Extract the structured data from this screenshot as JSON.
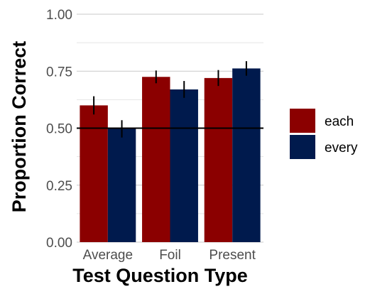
{
  "chart_data": {
    "type": "bar",
    "title": "",
    "xlabel": "Test Question Type",
    "ylabel": "Proportion Correct",
    "ylim": [
      0,
      1
    ],
    "yticks": [
      0,
      0.25,
      0.5,
      0.75,
      1
    ],
    "ytick_labels": [
      "0.00",
      "0.25",
      "0.50",
      "0.75",
      "1.00"
    ],
    "categories": [
      "Average",
      "Foil",
      "Present"
    ],
    "series": [
      {
        "name": "each",
        "color": "#8B0000",
        "values": [
          0.6,
          0.725,
          0.72
        ],
        "err": [
          0.04,
          0.028,
          0.035
        ]
      },
      {
        "name": "every",
        "color": "#001A4D",
        "values": [
          0.497,
          0.67,
          0.762
        ],
        "err": [
          0.038,
          0.037,
          0.032
        ]
      }
    ],
    "reference_line": 0.5,
    "grid": true,
    "legend_position": "right"
  }
}
